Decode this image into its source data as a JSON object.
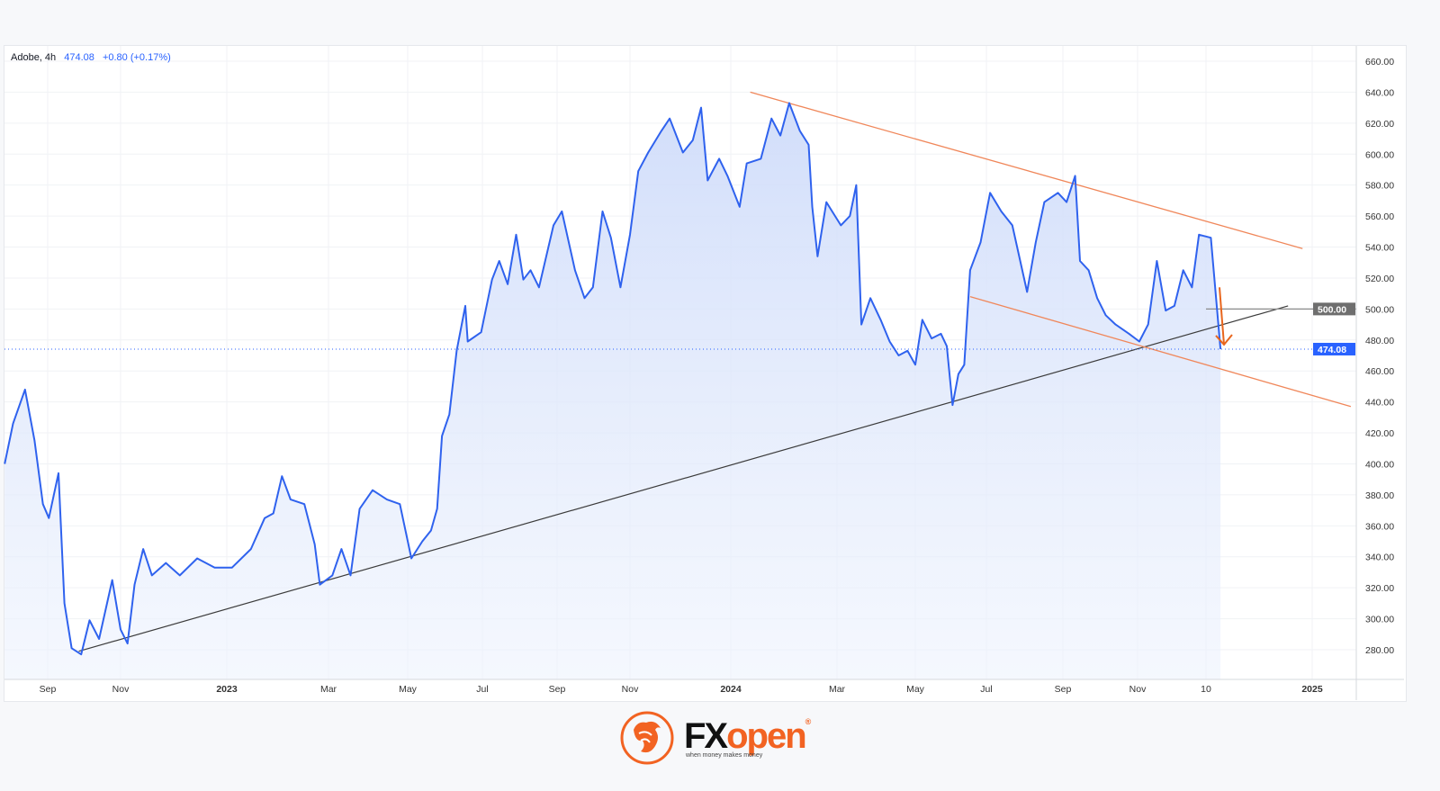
{
  "legend": {
    "symbol": "Adobe, 4h",
    "last": "474.08",
    "change": "+0.80 (+0.17%)"
  },
  "branding": {
    "name_part1": "FX",
    "name_part2": "open",
    "tagline": "when money makes money",
    "registered": "®"
  },
  "colors": {
    "line": "#2f62ee",
    "fill": "#dbe5fb",
    "trend_support": "#3b3b3b",
    "channel": "#f0875a",
    "arrow": "#e8661e",
    "price_label_bg": "#2962ff",
    "level_label_bg": "#6e6e6e"
  },
  "chart_data": {
    "type": "area",
    "title": "",
    "xlabel": "",
    "ylabel": "",
    "ylim": [
      268,
      672
    ],
    "grid": true,
    "y_ticks": [
      "280.00",
      "300.00",
      "320.00",
      "340.00",
      "360.00",
      "380.00",
      "400.00",
      "420.00",
      "440.00",
      "460.00",
      "480.00",
      "500.00",
      "520.00",
      "540.00",
      "560.00",
      "580.00",
      "600.00",
      "620.00",
      "640.00",
      "660.00"
    ],
    "x_ticks": [
      {
        "label": "Sep",
        "date": "2022-09-01"
      },
      {
        "label": "Nov",
        "date": "2022-11-01"
      },
      {
        "label": "2023",
        "date": "2023-01-01"
      },
      {
        "label": "Mar",
        "date": "2023-03-01"
      },
      {
        "label": "May",
        "date": "2023-05-01"
      },
      {
        "label": "Jul",
        "date": "2023-07-01"
      },
      {
        "label": "Sep",
        "date": "2023-09-01"
      },
      {
        "label": "Nov",
        "date": "2023-11-01"
      },
      {
        "label": "2024",
        "date": "2024-01-01"
      },
      {
        "label": "Mar",
        "date": "2024-03-01"
      },
      {
        "label": "May",
        "date": "2024-05-01"
      },
      {
        "label": "Jul",
        "date": "2024-07-01"
      },
      {
        "label": "Sep",
        "date": "2024-09-01"
      },
      {
        "label": "Nov",
        "date": "2024-11-01"
      },
      {
        "label": "10",
        "date": "2024-12-10"
      },
      {
        "label": "2025",
        "date": "2025-01-01"
      }
    ],
    "series": [
      {
        "x": [
          "2022-07-27",
          "2022-08-03",
          "2022-08-13",
          "2022-08-21",
          "2022-08-28",
          "2022-09-02",
          "2022-09-10",
          "2022-09-15",
          "2022-09-21",
          "2022-09-29",
          "2022-10-06",
          "2022-10-14",
          "2022-10-25",
          "2022-11-01",
          "2022-11-05",
          "2022-11-09",
          "2022-11-14",
          "2022-11-19",
          "2022-11-27",
          "2022-12-05",
          "2022-12-15",
          "2022-12-25",
          "2023-01-04",
          "2023-01-15",
          "2023-01-23",
          "2023-01-28",
          "2023-02-02",
          "2023-02-07",
          "2023-02-15",
          "2023-02-21",
          "2023-02-24",
          "2023-03-04",
          "2023-03-11",
          "2023-03-18",
          "2023-03-25",
          "2023-04-04",
          "2023-04-15",
          "2023-04-25",
          "2023-05-04",
          "2023-05-13",
          "2023-05-20",
          "2023-05-25",
          "2023-05-29",
          "2023-06-04",
          "2023-06-10",
          "2023-06-17",
          "2023-06-19",
          "2023-06-30",
          "2023-07-09",
          "2023-07-15",
          "2023-07-22",
          "2023-07-29",
          "2023-08-04",
          "2023-08-10",
          "2023-08-17",
          "2023-08-29",
          "2023-09-05",
          "2023-09-16",
          "2023-09-24",
          "2023-10-01",
          "2023-10-09",
          "2023-10-16",
          "2023-10-24",
          "2023-11-01",
          "2023-11-06",
          "2023-11-12",
          "2023-11-20",
          "2023-11-25",
          "2023-12-03",
          "2023-12-09",
          "2023-12-14",
          "2023-12-18",
          "2023-12-25",
          "2023-12-30",
          "2024-01-06",
          "2024-01-10",
          "2024-01-18",
          "2024-01-24",
          "2024-01-29",
          "2024-02-03",
          "2024-02-09",
          "2024-02-14",
          "2024-02-16",
          "2024-02-19",
          "2024-02-24",
          "2024-03-04",
          "2024-03-11",
          "2024-03-16",
          "2024-03-20",
          "2024-03-27",
          "2024-04-04",
          "2024-04-11",
          "2024-04-18",
          "2024-04-25",
          "2024-05-01",
          "2024-05-07",
          "2024-05-15",
          "2024-05-23",
          "2024-05-28",
          "2024-06-02",
          "2024-06-07",
          "2024-06-12",
          "2024-06-17",
          "2024-06-26",
          "2024-07-04",
          "2024-07-13",
          "2024-07-22",
          "2024-08-03",
          "2024-08-10",
          "2024-08-17",
          "2024-08-28",
          "2024-09-04",
          "2024-09-11",
          "2024-09-15",
          "2024-09-22",
          "2024-09-29",
          "2024-10-06",
          "2024-10-14",
          "2024-10-25",
          "2024-11-02",
          "2024-11-07",
          "2024-11-12",
          "2024-11-17",
          "2024-11-22",
          "2024-11-27",
          "2024-12-02",
          "2024-12-06",
          "2024-12-11",
          "2024-12-13"
        ],
        "y": [
          400,
          426,
          448,
          415,
          374,
          365,
          394,
          310,
          281,
          277,
          299,
          287,
          325,
          293,
          284,
          322,
          345,
          328,
          336,
          328,
          339,
          333,
          333,
          345,
          365,
          368,
          392,
          377,
          374,
          348,
          322,
          328,
          345,
          328,
          371,
          383,
          377,
          374,
          339,
          350,
          357,
          371,
          418,
          432,
          473,
          502,
          479,
          485,
          519,
          531,
          516,
          548,
          519,
          525,
          514,
          554,
          563,
          525,
          507,
          514,
          563,
          546,
          514,
          548,
          589,
          601,
          615,
          623,
          601,
          609,
          630,
          583,
          597,
          586,
          566,
          594,
          597,
          623,
          612,
          633,
          615,
          606,
          566,
          534,
          569,
          554,
          560,
          580,
          490,
          507,
          493,
          479,
          470,
          473,
          464,
          493,
          481,
          484,
          476,
          438,
          458,
          464,
          525,
          543,
          575,
          563,
          554,
          511,
          543,
          569,
          575,
          569,
          586,
          531,
          525,
          507,
          496,
          490,
          484,
          479,
          490,
          531,
          499,
          502,
          525,
          514,
          548,
          546,
          474.08
        ]
      }
    ],
    "annotations": {
      "support_trendline": {
        "from": [
          "2022-09-27",
          279
        ],
        "to": [
          "2024-12-27",
          502
        ]
      },
      "channel_upper": {
        "from": [
          "2024-01-12",
          640
        ],
        "to": [
          "2024-12-30",
          539
        ]
      },
      "channel_lower": {
        "from": [
          "2024-06-17",
          508
        ],
        "to": [
          "2025-01-09",
          437
        ]
      },
      "horizontal_level": {
        "price": 500,
        "label": "500.00",
        "from": "2024-12-10"
      },
      "down_arrow": {
        "from": [
          "2024-12-13",
          514
        ],
        "to": [
          "2024-12-14",
          477
        ]
      },
      "last_price": {
        "price": 474.08,
        "label": "474.08"
      }
    }
  }
}
